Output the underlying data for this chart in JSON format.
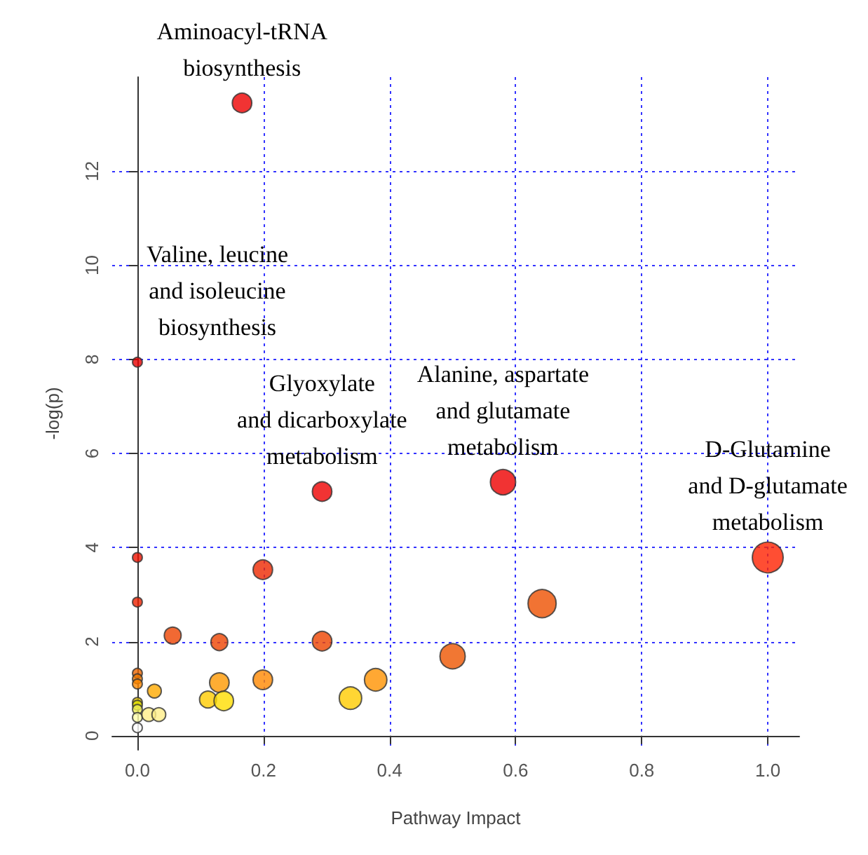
{
  "chart_data": {
    "type": "bubble",
    "xlabel": "Pathway Impact",
    "ylabel": "-log(p)",
    "xlim": [
      -0.04,
      1.05
    ],
    "xticks": [
      {
        "value": 0,
        "label": "0.0"
      },
      0.2,
      0.4,
      0.6,
      0.8,
      {
        "value": 1,
        "label": "1.0"
      }
    ],
    "ylim": [
      -0.3,
      14
    ],
    "yticks": [
      0,
      2,
      4,
      6,
      8,
      10,
      12
    ],
    "grid": true,
    "marker": "circle",
    "x": [
      0.166,
      0,
      0.293,
      0.58,
      1.0,
      0,
      0,
      0.199,
      0.056,
      0.13,
      0.293,
      0.5,
      0.642,
      0.199,
      0.378,
      0.338,
      0.13,
      0.112,
      0.137,
      0.027,
      0,
      0,
      0,
      0,
      0,
      0,
      0,
      0.018,
      0.034,
      0
    ],
    "values": [
      13.45,
      7.94,
      5.19,
      5.39,
      3.79,
      3.79,
      2.84,
      3.53,
      2.13,
      1.99,
      2.01,
      1.69,
      2.81,
      1.19,
      1.19,
      0.8,
      1.13,
      0.77,
      0.74,
      0.95,
      1.33,
      1.21,
      1.1,
      0.71,
      0.65,
      0.56,
      0.39,
      0.45,
      0.45,
      0.17
    ],
    "sizes": [
      0.4,
      0.1,
      0.4,
      0.67,
      1,
      0.1,
      0.1,
      0.4,
      0.3,
      0.3,
      0.4,
      0.67,
      0.83,
      0.4,
      0.53,
      0.53,
      0.4,
      0.3,
      0.4,
      0.2,
      0.1,
      0.1,
      0.1,
      0.1,
      0.1,
      0.1,
      0.1,
      0.2,
      0.2,
      0.1
    ],
    "colors": [
      "#ee0000",
      "#e80000",
      "#ee0000",
      "#ee0000",
      "#ff2200",
      "#ee1100",
      "#ee2200",
      "#ee2800",
      "#ee4400",
      "#ee4400",
      "#ee4400",
      "#ee5500",
      "#ee5000",
      "#ff8800",
      "#ff9200",
      "#ffcc00",
      "#ff9900",
      "#ffcc00",
      "#ffdd00",
      "#ffaa00",
      "#ee6600",
      "#ee7700",
      "#ff8800",
      "#eecc00",
      "#dddd00",
      "#eeee55",
      "#ffffaa",
      "#ffee88",
      "#ffee88",
      "#ffffff"
    ],
    "annotations": [
      {
        "text": "Aminoacyl-tRNA\nbiosynthesis",
        "x": 0.166,
        "y": 13.45
      },
      {
        "text": "Valine, leucine\nand isoleucine\nbiosynthesis",
        "x": 0,
        "y": 7.94
      },
      {
        "text": "Glyoxylate\nand dicarboxylate\nmetabolism",
        "x": 0.293,
        "y": 5.19
      },
      {
        "text": "Alanine, aspartate\nand glutamate\nmetabolism",
        "x": 0.58,
        "y": 5.39
      },
      {
        "text": "D-Glutamine\nand D-glutamate\nmetabolism",
        "x": 1.0,
        "y": 3.79
      }
    ]
  }
}
